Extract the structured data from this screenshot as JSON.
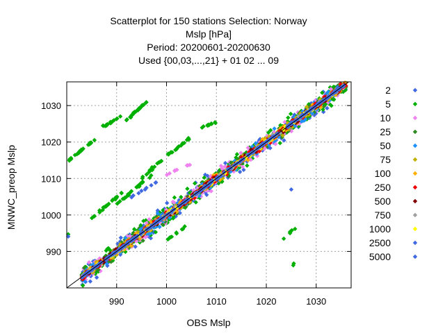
{
  "chart_data": {
    "type": "scatter",
    "title_lines": [
      "Scatterplot for  150 stations Selection: Norway",
      "Mslp [hPa]",
      "Period: 20200601-20200630",
      "Used {00,03,...,21} + 01 02 ... 09"
    ],
    "xlabel": "OBS Mslp",
    "ylabel": "MNWC_preop Mslp",
    "xlim": [
      980,
      1037
    ],
    "ylim": [
      980,
      1036.5
    ],
    "xticks": [
      990,
      1000,
      1010,
      1020,
      1030
    ],
    "yticks": [
      990,
      1000,
      1010,
      1020,
      1030
    ],
    "grid": true,
    "legend_position": "right",
    "series": [
      {
        "name": "2",
        "color": "#4169e1"
      },
      {
        "name": "5",
        "color": "#00b000"
      },
      {
        "name": "10",
        "color": "#ee82ee"
      },
      {
        "name": "25",
        "color": "#2e8b22"
      },
      {
        "name": "50",
        "color": "#1e90ff"
      },
      {
        "name": "75",
        "color": "#c0b000"
      },
      {
        "name": "100",
        "color": "#ffb000"
      },
      {
        "name": "250",
        "color": "#ee0000"
      },
      {
        "name": "500",
        "color": "#800000"
      },
      {
        "name": "750",
        "color": "#a0a0a0"
      },
      {
        "name": "1000",
        "color": "#ffff00"
      },
      {
        "name": "2500",
        "color": "#4169e1"
      },
      {
        "name": "5000",
        "color": "#4169e1"
      }
    ],
    "reference_line": "y = x"
  }
}
